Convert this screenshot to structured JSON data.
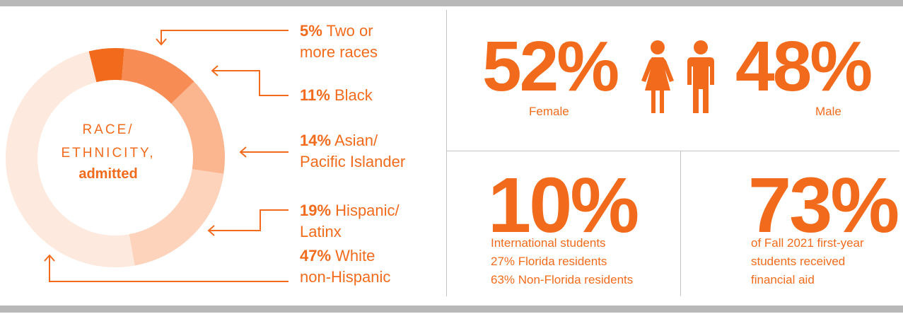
{
  "chart_data": {
    "type": "pie",
    "title": "RACE/ ETHNICITY, admitted",
    "categories": [
      "Two or more races",
      "Black",
      "Asian/ Pacific Islander",
      "Hispanic/ Latinx",
      "White non-Hispanic"
    ],
    "values": [
      5,
      11,
      14,
      19,
      47
    ],
    "value_labels": [
      "5%",
      "11%",
      "14%",
      "19%",
      "47%"
    ],
    "colors": [
      "#f26b1d",
      "#f88c55",
      "#fbb690",
      "#fdd3bb",
      "#fde9dd"
    ]
  },
  "donut": {
    "center_line1": "RACE/",
    "center_line2": "ETHNICITY,",
    "center_line3": "admitted",
    "legend": [
      {
        "pct": "5%",
        "line1": "Two or",
        "line2": "more races"
      },
      {
        "pct": "11%",
        "line1": "Black",
        "line2": ""
      },
      {
        "pct": "14%",
        "line1": "Asian/",
        "line2": "Pacific Islander"
      },
      {
        "pct": "19%",
        "line1": "Hispanic/",
        "line2": "Latinx"
      },
      {
        "pct": "47%",
        "line1": "White",
        "line2": "non-Hispanic"
      }
    ]
  },
  "gender": {
    "female_pct": "52%",
    "female_label": "Female",
    "male_pct": "48%",
    "male_label": "Male"
  },
  "international": {
    "pct": "10%",
    "line1": "International students",
    "line2": "27% Florida residents",
    "line3": "63% Non-Florida residents"
  },
  "aid": {
    "pct": "73%",
    "line1": "of Fall 2021 first-year",
    "line2": "students received",
    "line3": "financial aid"
  },
  "colors": {
    "accent": "#f26b1d",
    "divider": "#c4c4c4",
    "bar": "#b8b8b8"
  }
}
